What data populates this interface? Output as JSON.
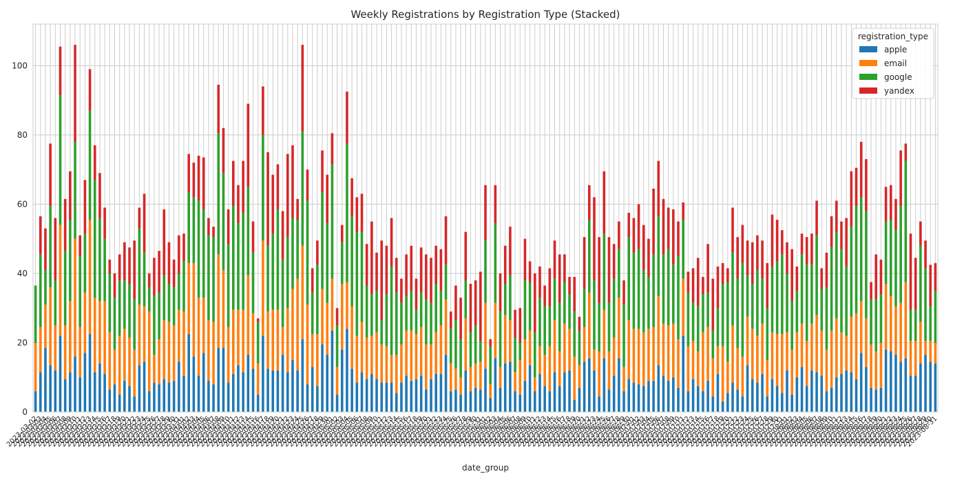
{
  "chart_data": {
    "type": "bar",
    "stacked": true,
    "title": "Weekly Registrations by Registration Type (Stacked)",
    "x_label": "date_group",
    "legend_title": "registration_type",
    "legend_position": "upper right",
    "grid": true,
    "ylim": [
      0,
      112
    ],
    "yticks": [
      0,
      20,
      40,
      60,
      80,
      100
    ],
    "categories": [
      "2023-03-02",
      "2023-03-03",
      "2023-03-04",
      "2023-03-05",
      "2023-03-06",
      "2023-03-07",
      "2023-03-08",
      "2023-03-09",
      "2023-03-10",
      "2023-03-11",
      "2023-03-12",
      "2023-03-13",
      "2023-03-14",
      "2023-03-15",
      "2023-03-16",
      "2023-03-17",
      "2023-03-18",
      "2023-03-19",
      "2023-03-20",
      "2023-03-21",
      "2023-03-22",
      "2023-03-23",
      "2023-03-24",
      "2023-03-25",
      "2023-03-26",
      "2023-03-27",
      "2023-03-28",
      "2023-03-29",
      "2023-03-30",
      "2023-03-31",
      "2023-04-01",
      "2023-04-02",
      "2023-04-03",
      "2023-04-04",
      "2023-04-05",
      "2023-04-06",
      "2023-04-07",
      "2023-04-08",
      "2023-04-09",
      "2023-04-10",
      "2023-04-11",
      "2023-04-12",
      "2023-04-13",
      "2023-04-14",
      "2023-04-15",
      "2023-04-16",
      "2023-04-17",
      "2023-04-18",
      "2023-04-19",
      "2023-04-20",
      "2023-04-21",
      "2023-04-22",
      "2023-04-23",
      "2023-04-24",
      "2023-04-25",
      "2023-04-26",
      "2023-04-27",
      "2023-04-28",
      "2023-04-29",
      "2023-04-30",
      "2023-05-01",
      "2023-05-02",
      "2023-05-03",
      "2023-05-04",
      "2023-05-05",
      "2023-05-06",
      "2023-05-07",
      "2023-05-08",
      "2023-05-09",
      "2023-05-10",
      "2023-05-11",
      "2023-05-12",
      "2023-05-13",
      "2023-05-14",
      "2023-05-15",
      "2023-05-16",
      "2023-05-17",
      "2023-05-18",
      "2023-05-19",
      "2023-05-20",
      "2023-05-21",
      "2023-05-22",
      "2023-05-23",
      "2023-05-24",
      "2023-05-25",
      "2023-05-26",
      "2023-05-27",
      "2023-05-28",
      "2023-05-29",
      "2023-05-30",
      "2023-05-31",
      "2023-06-01",
      "2023-06-02",
      "2023-06-03",
      "2023-06-04",
      "2023-06-05",
      "2023-06-06",
      "2023-06-07",
      "2023-06-08",
      "2023-06-09",
      "2023-06-10",
      "2023-06-11",
      "2023-06-12",
      "2023-06-13",
      "2023-06-14",
      "2023-06-15",
      "2023-06-16",
      "2023-06-17",
      "2023-06-18",
      "2023-06-19",
      "2023-06-20",
      "2023-06-21",
      "2023-06-22",
      "2023-06-23",
      "2023-06-24",
      "2023-06-25",
      "2023-06-26",
      "2023-06-27",
      "2023-06-28",
      "2023-06-29",
      "2023-06-30",
      "2023-07-01",
      "2023-07-02",
      "2023-07-03",
      "2023-07-04",
      "2023-07-05",
      "2023-07-06",
      "2023-07-07",
      "2023-07-08",
      "2023-07-09",
      "2023-07-10",
      "2023-07-11",
      "2023-07-12",
      "2023-07-13",
      "2023-07-14",
      "2023-07-15",
      "2023-07-16",
      "2023-07-17",
      "2023-07-18",
      "2023-07-19",
      "2023-07-20",
      "2023-07-21",
      "2023-07-22",
      "2023-07-23",
      "2023-07-24",
      "2023-07-25",
      "2023-07-26",
      "2023-07-27",
      "2023-07-28",
      "2023-07-29",
      "2023-07-30",
      "2023-07-31",
      "2023-08-01",
      "2023-08-02",
      "2023-08-03",
      "2023-08-04",
      "2023-08-05",
      "2023-08-06",
      "2023-08-07",
      "2023-08-08",
      "2023-08-09",
      "2023-08-10",
      "2023-08-11",
      "2023-08-12",
      "2023-08-13",
      "2023-08-14",
      "2023-08-15",
      "2023-08-16",
      "2023-08-17",
      "2023-08-18",
      "2023-08-19",
      "2023-08-20",
      "2023-08-21",
      "2023-08-22",
      "2023-08-23",
      "2023-08-24",
      "2023-08-25",
      "2023-08-26",
      "2023-08-27",
      "2023-08-28",
      "2023-08-29",
      "2023-08-30",
      "2023-08-31"
    ],
    "series": [
      {
        "name": "apple",
        "color": "#1f77b4",
        "values": [
          6,
          11.5,
          18.5,
          13.5,
          12,
          22,
          9.5,
          11.5,
          16,
          10,
          17,
          22.5,
          11.5,
          14,
          11,
          6.5,
          8,
          5,
          9,
          7.5,
          4.5,
          13.5,
          14.5,
          6,
          8.5,
          8,
          9.5,
          8.5,
          9,
          14.5,
          10.5,
          22.5,
          16,
          10.5,
          17,
          9,
          8,
          18.5,
          18.5,
          8.5,
          11,
          13.5,
          11.5,
          16.5,
          12.5,
          5,
          22,
          12.5,
          12,
          12,
          16.5,
          11.5,
          15,
          12,
          21,
          8,
          13,
          7.5,
          19.5,
          16.5,
          23.5,
          5,
          18,
          24,
          12.5,
          8.5,
          11.5,
          9.5,
          11,
          9.5,
          8.5,
          8.5,
          8.5,
          5.5,
          8.5,
          10.5,
          9,
          9.5,
          10.5,
          6.5,
          9.5,
          11,
          11,
          16.5,
          6,
          6.5,
          5,
          12,
          6,
          7,
          6.5,
          12.5,
          4,
          15.5,
          7,
          14,
          14.5,
          6,
          5,
          9,
          13.5,
          6,
          11,
          7.5,
          6,
          11.5,
          7.5,
          11.5,
          12,
          3.5,
          7,
          14.5,
          15.5,
          12,
          4.5,
          15.5,
          6.5,
          10.5,
          15.5,
          6,
          9.5,
          8.5,
          8,
          7.5,
          9,
          9,
          13.5,
          10.5,
          9,
          10,
          7,
          22,
          6,
          9.5,
          7.5,
          6,
          9,
          4.5,
          11,
          3,
          5.5,
          8.5,
          6.5,
          4.5,
          13.5,
          9.5,
          8.5,
          11,
          4.5,
          9.5,
          7.5,
          5.5,
          12,
          5,
          10,
          13,
          7.5,
          12,
          11.5,
          10.5,
          6,
          7,
          10,
          11,
          12,
          11.5,
          9.5,
          17,
          13,
          7,
          6.5,
          7,
          18,
          17.5,
          16.5,
          14.5,
          15.5,
          10.5,
          10.5,
          14,
          16.5,
          14.5,
          14
        ]
      },
      {
        "name": "email",
        "color": "#ff7f0e",
        "values": [
          14,
          13,
          12.5,
          22.5,
          13,
          32,
          15.5,
          20.5,
          34,
          14.5,
          17.5,
          33,
          21.5,
          18,
          21,
          16.5,
          10,
          17,
          15,
          14,
          13.5,
          17.5,
          16,
          23,
          8,
          13,
          17,
          17.5,
          16,
          15,
          18.5,
          20.5,
          27,
          22.5,
          16,
          17.5,
          18,
          27,
          22.5,
          16,
          18.5,
          16,
          18,
          23,
          16,
          9,
          27.5,
          16.5,
          17.5,
          17.5,
          8,
          18.5,
          20.5,
          26.5,
          27,
          23,
          9.5,
          15,
          16,
          15,
          15,
          8,
          19,
          13.5,
          18,
          13.5,
          14.5,
          12,
          11,
          13.5,
          11,
          10.5,
          8,
          11,
          11,
          13,
          14.5,
          13,
          14,
          13,
          10,
          12,
          14,
          16,
          8,
          6,
          5,
          15,
          7,
          7,
          8,
          19,
          4,
          16,
          6,
          14,
          12,
          5.5,
          10,
          12,
          10,
          4,
          8,
          9,
          13,
          15,
          10,
          14,
          12,
          12.5,
          6.5,
          10,
          19,
          6,
          13,
          14,
          11,
          11,
          17.5,
          7,
          17,
          15.5,
          16,
          15.5,
          15,
          15.5,
          20,
          15,
          16,
          15.5,
          14,
          16.5,
          13,
          11,
          10,
          17,
          15.5,
          11,
          8,
          16,
          9,
          16.5,
          12,
          11.5,
          14,
          14.5,
          13.5,
          14.5,
          10.5,
          13.5,
          15,
          17,
          11,
          13,
          13,
          12.5,
          13,
          13.5,
          16.5,
          13,
          12,
          16.5,
          17,
          12,
          10,
          16,
          19,
          15,
          14,
          12.5,
          11,
          13,
          19,
          16,
          14,
          17,
          22,
          10,
          10,
          12,
          4,
          6,
          6
        ]
      },
      {
        "name": "google",
        "color": "#2ca02c",
        "values": [
          16.5,
          21,
          10,
          23.5,
          13,
          37.5,
          21.5,
          23.5,
          28,
          20.5,
          17,
          31.5,
          34,
          24,
          18,
          17,
          15,
          16,
          14,
          15.5,
          14.5,
          22,
          15.5,
          7,
          17,
          13.5,
          13,
          11,
          11,
          10.5,
          14.5,
          20.5,
          19,
          28,
          25.5,
          24.5,
          24.5,
          35,
          28,
          24,
          30,
          25,
          28,
          25.5,
          17.5,
          12,
          30.5,
          19,
          22,
          29,
          19.5,
          20.5,
          20.5,
          17,
          33,
          30,
          12,
          20,
          28,
          23,
          33,
          12,
          12,
          40,
          26,
          30,
          26,
          15,
          12,
          12,
          7,
          15,
          25.5,
          18,
          12,
          10,
          11.5,
          7,
          10,
          13,
          12,
          14,
          10,
          10,
          10,
          14,
          11,
          11,
          10,
          11,
          6,
          18,
          11,
          23,
          16,
          9,
          13,
          10,
          5,
          17,
          14,
          13,
          14,
          14,
          11.5,
          12,
          14,
          12,
          10,
          13,
          10,
          11,
          21,
          20,
          14,
          22,
          14,
          17,
          14,
          18,
          24,
          22,
          23,
          18,
          15,
          21,
          23,
          20,
          22,
          17,
          24,
          17,
          15.5,
          11,
          13,
          11,
          10,
          8,
          11,
          18,
          23,
          21,
          20,
          27,
          12,
          13,
          19,
          13,
          15,
          19,
          21,
          23,
          17,
          14,
          12,
          20,
          22,
          17,
          23,
          12,
          18,
          24,
          25,
          24,
          20,
          26,
          31,
          30,
          31,
          13,
          15,
          14,
          18,
          22,
          22,
          28,
          35,
          9,
          9,
          22,
          21,
          10,
          15
        ]
      },
      {
        "name": "yandex",
        "color": "#d62728",
        "values": [
          0,
          11,
          12,
          18,
          18,
          14,
          15,
          14,
          28,
          6,
          15.5,
          12,
          10,
          13,
          9,
          4,
          7,
          7.5,
          11,
          10.5,
          17,
          6,
          17,
          4,
          11,
          12,
          19,
          12,
          8,
          11,
          8,
          11,
          10,
          13,
          15,
          5,
          3,
          14,
          13,
          10,
          13,
          11,
          15,
          24,
          9,
          1,
          14,
          27,
          17,
          13,
          14,
          24,
          21,
          6,
          25,
          9,
          7,
          7,
          12,
          14,
          9,
          5,
          5,
          15,
          11,
          10,
          11,
          12,
          21,
          11,
          23,
          14,
          14,
          10,
          7,
          12,
          13,
          9,
          13,
          13,
          13,
          11,
          12,
          14,
          5,
          10,
          12,
          14,
          14,
          13,
          20,
          16,
          2,
          11,
          11,
          11,
          14,
          8,
          10,
          12,
          6,
          17,
          9,
          6,
          11,
          11,
          14,
          8,
          5,
          10,
          4,
          15,
          10,
          24,
          19,
          18,
          19,
          10,
          8,
          7,
          7,
          10,
          13,
          13,
          11,
          19,
          16,
          16,
          12,
          16,
          10,
          5,
          6,
          10,
          14,
          5,
          14,
          15,
          12,
          6,
          4,
          13,
          12,
          11,
          10,
          12,
          10,
          11,
          13,
          15,
          12,
          7,
          9,
          15,
          7,
          6,
          8,
          9,
          10,
          6,
          10,
          9,
          9,
          8,
          14,
          16,
          11,
          16,
          15,
          5,
          13,
          10,
          10,
          10,
          9,
          16,
          5,
          22,
          15,
          7,
          8,
          12,
          8
        ]
      }
    ]
  }
}
